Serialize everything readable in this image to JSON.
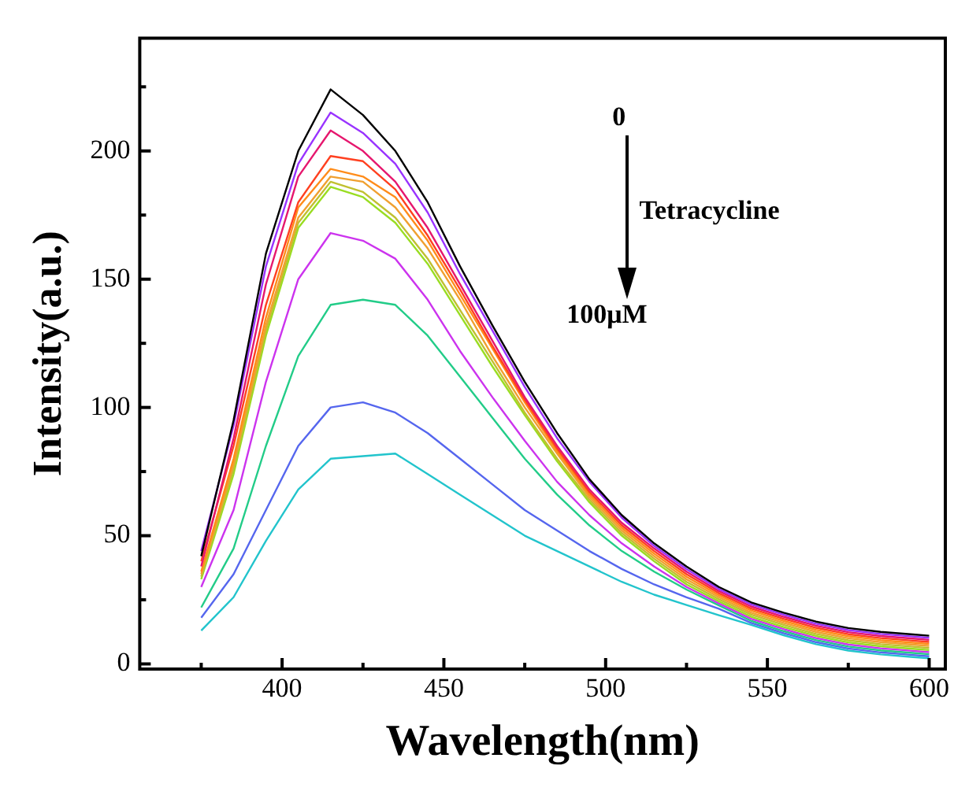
{
  "chart_data": {
    "type": "line",
    "xlabel": "Wavelength(nm)",
    "ylabel": "Intensity(a.u.)",
    "x": [
      375,
      385,
      395,
      405,
      415,
      425,
      435,
      445,
      455,
      465,
      475,
      485,
      495,
      505,
      515,
      525,
      535,
      545,
      555,
      565,
      575,
      585,
      595,
      600
    ],
    "xlim": [
      356,
      605
    ],
    "ylim": [
      -2,
      244
    ],
    "xticks": [
      {
        "value": 375,
        "label": null
      },
      400,
      {
        "value": 425,
        "label": null
      },
      450,
      {
        "value": 475,
        "label": null
      },
      500,
      {
        "value": 525,
        "label": null
      },
      550,
      {
        "value": 575,
        "label": null
      },
      600
    ],
    "yticks": [
      0,
      {
        "value": 25,
        "label": null
      },
      50,
      {
        "value": 75,
        "label": null
      },
      100,
      {
        "value": 125,
        "label": null
      },
      150,
      {
        "value": 175,
        "label": null
      },
      200,
      {
        "value": 225,
        "label": null
      }
    ],
    "grid": false,
    "legend": false,
    "marker": "none",
    "line_style": "solid",
    "annotations": [
      "0",
      "Tetracycline",
      "100μM"
    ],
    "series": [
      {
        "color": "#000000",
        "values": [
          42,
          95,
          160,
          200,
          224,
          214,
          200,
          180,
          155,
          132,
          110,
          90,
          72,
          58,
          47,
          38,
          30,
          24,
          20,
          16.5,
          14,
          12.5,
          11.5,
          11
        ]
      },
      {
        "color": "#9933ff",
        "values": [
          44,
          93,
          155,
          195,
          215,
          207,
          195,
          176,
          152,
          130,
          108,
          88,
          71,
          57,
          46,
          37,
          29.2,
          23.2,
          19.2,
          15.7,
          13.2,
          11.7,
          10.7,
          10.2
        ]
      },
      {
        "color": "#e6176e",
        "values": [
          38,
          88,
          148,
          190,
          208,
          200,
          188,
          170,
          148,
          126,
          104,
          85,
          68,
          55,
          45,
          36,
          28.4,
          22.4,
          18.4,
          14.9,
          12.4,
          10.9,
          9.9,
          9.4
        ]
      },
      {
        "color": "#ff4020",
        "values": [
          40,
          85,
          140,
          180,
          198,
          196,
          185,
          167,
          146,
          124,
          103,
          84,
          67,
          54,
          44,
          35,
          27.6,
          21.6,
          17.6,
          14.1,
          11.6,
          10.1,
          9.1,
          8.6
        ]
      },
      {
        "color": "#ff8c1a",
        "values": [
          36,
          80,
          135,
          178,
          193,
          190,
          182,
          165,
          144,
          123,
          102,
          83,
          66,
          53,
          43,
          34,
          26.8,
          20.8,
          16.8,
          13.3,
          10.8,
          9.3,
          8.3,
          7.8
        ]
      },
      {
        "color": "#f0a030",
        "values": [
          35,
          78,
          132,
          174,
          190,
          188,
          178,
          162,
          142,
          120,
          100,
          82,
          65,
          52,
          42,
          33,
          26,
          20,
          16,
          12.5,
          10,
          8.5,
          7.5,
          7
        ]
      },
      {
        "color": "#c0c030",
        "values": [
          34,
          76,
          130,
          172,
          188,
          184,
          174,
          158,
          138,
          118,
          98,
          80,
          64,
          51,
          41,
          32,
          25.2,
          19.2,
          15.2,
          11.7,
          9.2,
          7.7,
          6.7,
          6.2
        ]
      },
      {
        "color": "#99dd22",
        "values": [
          33,
          74,
          128,
          170,
          186,
          182,
          172,
          156,
          136,
          116,
          97,
          79,
          63,
          50,
          40,
          31,
          24.4,
          18.4,
          14.4,
          10.9,
          8.4,
          6.9,
          5.9,
          5.4
        ]
      },
      {
        "color": "#cc33ee",
        "values": [
          30,
          60,
          110,
          150,
          168,
          165,
          158,
          142,
          122,
          104,
          87,
          71,
          58,
          47,
          38,
          30,
          23.6,
          17.6,
          13.6,
          10.1,
          7.6,
          6.1,
          5.1,
          4.6
        ]
      },
      {
        "color": "#22cc88",
        "values": [
          22,
          45,
          85,
          120,
          140,
          142,
          140,
          128,
          112,
          96,
          80,
          66,
          54,
          44,
          36,
          29,
          22.8,
          16.8,
          12.8,
          9.3,
          6.8,
          5.3,
          4.3,
          3.8
        ]
      },
      {
        "color": "#5566ee",
        "values": [
          18,
          35,
          60,
          85,
          100,
          102,
          98,
          90,
          80,
          70,
          60,
          52,
          44,
          37,
          31,
          26,
          21.5,
          16,
          12,
          8.5,
          6,
          4.5,
          3.5,
          3
        ]
      },
      {
        "color": "#22c4cc",
        "values": [
          13,
          26,
          48,
          68,
          80,
          81,
          82,
          74,
          66,
          58,
          50,
          44,
          38,
          32,
          27,
          23,
          19,
          15.2,
          11.2,
          7.7,
          5.2,
          3.7,
          2.7,
          2.2
        ]
      }
    ]
  }
}
